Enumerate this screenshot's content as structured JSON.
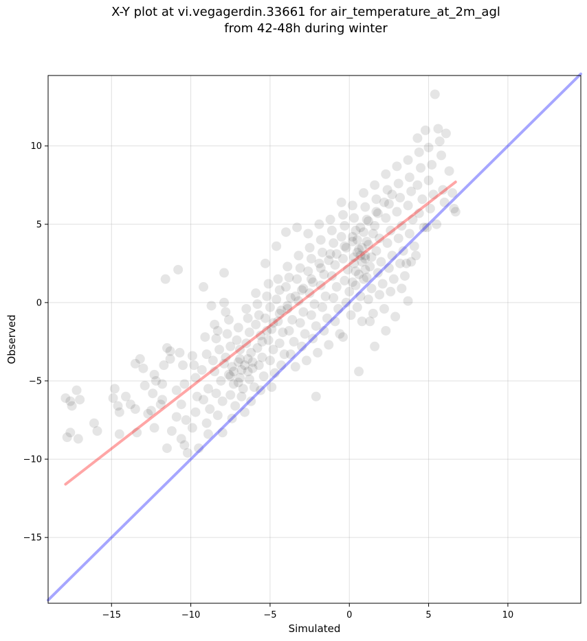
{
  "chart_data": {
    "type": "scatter",
    "title": [
      "X-Y plot at vi.vegagerdin.33661 for air_temperature_at_2m_agl",
      "from 42-48h during winter"
    ],
    "xlabel": "Simulated",
    "ylabel": "Observed",
    "xlim": [
      -19.0,
      14.6
    ],
    "ylim": [
      -19.2,
      14.5
    ],
    "xticks": [
      -15,
      -10,
      -5,
      0,
      5,
      10
    ],
    "xtick_labels": [
      "−15",
      "−10",
      "−5",
      "0",
      "5",
      "10"
    ],
    "yticks": [
      -15,
      -10,
      -5,
      0,
      5,
      10
    ],
    "ytick_labels": [
      "−15",
      "−10",
      "−5",
      "0",
      "5",
      "10"
    ],
    "grid": true,
    "point_color": "#000000",
    "point_alpha": 0.1,
    "regression_line": {
      "color": "#ff0000",
      "alpha": 0.35,
      "x": [
        -17.9,
        6.7
      ],
      "y": [
        -11.6,
        7.7
      ]
    },
    "identity_line": {
      "color": "#0000ff",
      "alpha": 0.35,
      "x": [
        -19.0,
        14.6
      ],
      "y": [
        -19.0,
        14.6
      ]
    },
    "points": [
      [
        -17.9,
        -6.1
      ],
      [
        -17.6,
        -6.3
      ],
      [
        -17.2,
        -5.6
      ],
      [
        -17.0,
        -6.2
      ],
      [
        -17.8,
        -8.6
      ],
      [
        -17.6,
        -8.3
      ],
      [
        -17.1,
        -8.7
      ],
      [
        -17.5,
        -6.6
      ],
      [
        -16.1,
        -7.7
      ],
      [
        -15.9,
        -8.2
      ],
      [
        -14.8,
        -5.5
      ],
      [
        -14.9,
        -6.1
      ],
      [
        -14.6,
        -6.6
      ],
      [
        -14.5,
        -7.0
      ],
      [
        -14.5,
        -8.4
      ],
      [
        -14.1,
        -6.0
      ],
      [
        -13.8,
        -6.5
      ],
      [
        -13.5,
        -6.8
      ],
      [
        -13.4,
        -8.3
      ],
      [
        -13.2,
        -3.6
      ],
      [
        -13.5,
        -3.9
      ],
      [
        -13.0,
        -4.2
      ],
      [
        -12.9,
        -5.3
      ],
      [
        -12.7,
        -7.1
      ],
      [
        -12.5,
        -6.9
      ],
      [
        -12.3,
        -4.6
      ],
      [
        -12.2,
        -5.0
      ],
      [
        -12.4,
        -5.8
      ],
      [
        -12.3,
        -8.0
      ],
      [
        -11.8,
        -5.2
      ],
      [
        -11.8,
        -6.2
      ],
      [
        -11.9,
        -6.5
      ],
      [
        -11.7,
        -4.0
      ],
      [
        -11.6,
        1.5
      ],
      [
        -11.5,
        -2.9
      ],
      [
        -11.3,
        -3.1
      ],
      [
        -11.3,
        -3.6
      ],
      [
        -11.2,
        -8.2
      ],
      [
        -11.5,
        -9.3
      ],
      [
        -10.8,
        2.1
      ],
      [
        -10.7,
        -3.2
      ],
      [
        -10.5,
        -4.0
      ],
      [
        -10.4,
        -5.2
      ],
      [
        -10.9,
        -5.6
      ],
      [
        -10.6,
        -6.5
      ],
      [
        -10.9,
        -7.3
      ],
      [
        -10.3,
        -7.5
      ],
      [
        -10.6,
        -8.7
      ],
      [
        -10.4,
        -9.1
      ],
      [
        -10.2,
        -9.6
      ],
      [
        -9.9,
        -3.4
      ],
      [
        -9.8,
        -4.0
      ],
      [
        -9.7,
        -4.8
      ],
      [
        -9.6,
        -6.0
      ],
      [
        -9.7,
        -7.0
      ],
      [
        -9.9,
        -8.0
      ],
      [
        -9.5,
        -9.3
      ],
      [
        -9.2,
        1.0
      ],
      [
        -9.1,
        -2.2
      ],
      [
        -9.0,
        -3.3
      ],
      [
        -9.3,
        -4.3
      ],
      [
        -8.9,
        -5.5
      ],
      [
        -9.2,
        -6.2
      ],
      [
        -8.8,
        -6.8
      ],
      [
        -9.0,
        -7.7
      ],
      [
        -8.9,
        -8.4
      ],
      [
        -8.7,
        -0.2
      ],
      [
        -8.5,
        -1.4
      ],
      [
        -8.3,
        -1.8
      ],
      [
        -8.4,
        -2.3
      ],
      [
        -8.2,
        -3.0
      ],
      [
        -8.6,
        -3.7
      ],
      [
        -8.5,
        -4.4
      ],
      [
        -8.1,
        -5.0
      ],
      [
        -8.4,
        -5.8
      ],
      [
        -8.0,
        -6.3
      ],
      [
        -8.3,
        -7.2
      ],
      [
        -8.0,
        -8.3
      ],
      [
        -7.9,
        1.9
      ],
      [
        -7.9,
        0.0
      ],
      [
        -7.8,
        -0.6
      ],
      [
        -7.6,
        -1.1
      ],
      [
        -7.7,
        -2.0
      ],
      [
        -7.5,
        -2.8
      ],
      [
        -7.8,
        -3.5
      ],
      [
        -7.4,
        -4.1
      ],
      [
        -7.6,
        -4.6
      ],
      [
        -7.3,
        -5.2
      ],
      [
        -7.5,
        -5.9
      ],
      [
        -7.2,
        -6.6
      ],
      [
        -7.4,
        -7.4
      ],
      [
        -7.0,
        -1.6
      ],
      [
        -7.1,
        -2.4
      ],
      [
        -6.9,
        -3.0
      ],
      [
        -7.0,
        -3.8
      ],
      [
        -6.8,
        -4.3
      ],
      [
        -6.9,
        -4.8
      ],
      [
        -6.7,
        -5.5
      ],
      [
        -6.8,
        -6.0
      ],
      [
        -6.6,
        -7.0
      ],
      [
        -6.5,
        -0.4
      ],
      [
        -6.4,
        -1.0
      ],
      [
        -6.3,
        -1.9
      ],
      [
        -6.5,
        -2.6
      ],
      [
        -6.2,
        -3.2
      ],
      [
        -6.4,
        -3.6
      ],
      [
        -6.1,
        -4.2
      ],
      [
        -6.3,
        -4.9
      ],
      [
        -6.0,
        -5.4
      ],
      [
        -6.2,
        -6.3
      ],
      [
        -5.9,
        0.6
      ],
      [
        -5.8,
        -0.1
      ],
      [
        -5.7,
        -0.8
      ],
      [
        -5.9,
        -1.4
      ],
      [
        -5.6,
        -2.1
      ],
      [
        -5.8,
        -2.9
      ],
      [
        -5.5,
        -3.5
      ],
      [
        -5.7,
        -4.0
      ],
      [
        -5.4,
        -4.7
      ],
      [
        -5.6,
        -5.6
      ],
      [
        -5.3,
        2.5
      ],
      [
        -5.1,
        1.2
      ],
      [
        -5.2,
        0.4
      ],
      [
        -5.0,
        -0.3
      ],
      [
        -5.3,
        -1.0
      ],
      [
        -4.9,
        -1.7
      ],
      [
        -5.1,
        -2.4
      ],
      [
        -4.8,
        -3.0
      ],
      [
        -5.0,
        -3.7
      ],
      [
        -4.7,
        -4.5
      ],
      [
        -4.9,
        -5.4
      ],
      [
        -4.6,
        3.6
      ],
      [
        -4.5,
        1.5
      ],
      [
        -4.4,
        0.8
      ],
      [
        -4.6,
        0.2
      ],
      [
        -4.3,
        -0.5
      ],
      [
        -4.5,
        -1.2
      ],
      [
        -4.2,
        -1.9
      ],
      [
        -4.4,
        -2.6
      ],
      [
        -4.1,
        -3.3
      ],
      [
        -4.3,
        -4.0
      ],
      [
        -4.0,
        4.5
      ],
      [
        -3.9,
        2.3
      ],
      [
        -3.8,
        1.6
      ],
      [
        -4.0,
        1.0
      ],
      [
        -3.7,
        0.3
      ],
      [
        -3.9,
        -0.4
      ],
      [
        -3.6,
        -1.1
      ],
      [
        -3.8,
        -1.8
      ],
      [
        -3.5,
        -2.5
      ],
      [
        -3.7,
        -3.3
      ],
      [
        -3.4,
        -4.1
      ],
      [
        -3.3,
        4.8
      ],
      [
        -3.2,
        3.0
      ],
      [
        -3.1,
        2.2
      ],
      [
        -3.3,
        1.5
      ],
      [
        -3.0,
        0.8
      ],
      [
        -3.2,
        0.1
      ],
      [
        -2.9,
        -0.6
      ],
      [
        -3.1,
        -1.3
      ],
      [
        -2.8,
        -2.0
      ],
      [
        -3.0,
        -2.8
      ],
      [
        -2.7,
        -3.7
      ],
      [
        -2.6,
        4.4
      ],
      [
        -2.5,
        3.5
      ],
      [
        -2.4,
        2.8
      ],
      [
        -2.6,
        2.0
      ],
      [
        -2.3,
        1.3
      ],
      [
        -2.5,
        0.6
      ],
      [
        -2.2,
        -0.1
      ],
      [
        -2.4,
        -0.8
      ],
      [
        -2.1,
        -1.5
      ],
      [
        -2.3,
        -2.3
      ],
      [
        -2.0,
        -3.2
      ],
      [
        -2.1,
        -6.0
      ],
      [
        -1.9,
        5.0
      ],
      [
        -1.8,
        4.0
      ],
      [
        -1.7,
        3.2
      ],
      [
        -1.9,
        2.5
      ],
      [
        -1.6,
        1.8
      ],
      [
        -1.8,
        1.1
      ],
      [
        -1.5,
        0.4
      ],
      [
        -1.7,
        -0.3
      ],
      [
        -1.4,
        -1.0
      ],
      [
        -1.6,
        -1.8
      ],
      [
        -1.3,
        -2.7
      ],
      [
        -1.2,
        5.3
      ],
      [
        -1.1,
        4.6
      ],
      [
        -1.0,
        3.8
      ],
      [
        -1.2,
        3.1
      ],
      [
        -0.9,
        2.4
      ],
      [
        -1.1,
        1.7
      ],
      [
        -0.8,
        1.0
      ],
      [
        -1.0,
        0.3
      ],
      [
        -0.7,
        -0.4
      ],
      [
        -0.9,
        -1.2
      ],
      [
        -0.6,
        -2.0
      ],
      [
        -0.5,
        6.4
      ],
      [
        -0.4,
        5.6
      ],
      [
        -0.3,
        4.9
      ],
      [
        -0.5,
        4.2
      ],
      [
        -0.2,
        3.5
      ],
      [
        -0.4,
        2.8
      ],
      [
        -0.1,
        2.1
      ],
      [
        -0.3,
        1.4
      ],
      [
        0.0,
        0.7
      ],
      [
        -0.2,
        0.0
      ],
      [
        0.1,
        -0.8
      ],
      [
        -0.4,
        -2.2
      ],
      [
        0.6,
        -4.4
      ],
      [
        0.2,
        6.2
      ],
      [
        0.3,
        5.4
      ],
      [
        0.4,
        4.6
      ],
      [
        0.2,
        3.9
      ],
      [
        0.5,
        3.2
      ],
      [
        0.3,
        2.5
      ],
      [
        0.6,
        1.8
      ],
      [
        0.4,
        1.1
      ],
      [
        0.7,
        0.4
      ],
      [
        0.5,
        -0.3
      ],
      [
        0.8,
        -1.2
      ],
      [
        0.9,
        7.0
      ],
      [
        1.0,
        6.1
      ],
      [
        1.1,
        5.3
      ],
      [
        0.9,
        4.5
      ],
      [
        1.2,
        3.7
      ],
      [
        1.0,
        3.0
      ],
      [
        1.3,
        2.3
      ],
      [
        1.1,
        1.6
      ],
      [
        1.4,
        0.9
      ],
      [
        1.2,
        0.2
      ],
      [
        1.5,
        -0.7
      ],
      [
        1.3,
        -1.2
      ],
      [
        1.6,
        -2.8
      ],
      [
        1.6,
        7.5
      ],
      [
        1.7,
        6.6
      ],
      [
        1.8,
        5.7
      ],
      [
        1.6,
        4.9
      ],
      [
        1.9,
        4.1
      ],
      [
        1.7,
        3.3
      ],
      [
        2.0,
        2.6
      ],
      [
        1.8,
        1.9
      ],
      [
        2.1,
        1.2
      ],
      [
        1.9,
        0.5
      ],
      [
        2.2,
        -0.4
      ],
      [
        2.3,
        -1.8
      ],
      [
        2.3,
        8.2
      ],
      [
        2.4,
        7.2
      ],
      [
        2.5,
        6.3
      ],
      [
        2.3,
        5.4
      ],
      [
        2.6,
        4.6
      ],
      [
        2.4,
        3.8
      ],
      [
        2.7,
        3.0
      ],
      [
        2.5,
        2.2
      ],
      [
        2.8,
        1.5
      ],
      [
        2.6,
        0.7
      ],
      [
        2.9,
        -0.9
      ],
      [
        3.0,
        8.7
      ],
      [
        3.1,
        7.6
      ],
      [
        3.2,
        6.7
      ],
      [
        3.0,
        5.8
      ],
      [
        3.3,
        4.9
      ],
      [
        3.1,
        4.1
      ],
      [
        3.4,
        3.3
      ],
      [
        3.2,
        2.5
      ],
      [
        3.5,
        1.7
      ],
      [
        3.3,
        0.9
      ],
      [
        3.7,
        9.1
      ],
      [
        3.8,
        8.0
      ],
      [
        3.9,
        7.1
      ],
      [
        3.7,
        6.2
      ],
      [
        4.0,
        5.3
      ],
      [
        3.8,
        4.4
      ],
      [
        4.1,
        3.6
      ],
      [
        3.9,
        2.6
      ],
      [
        3.7,
        0.1
      ],
      [
        4.3,
        10.5
      ],
      [
        4.4,
        9.6
      ],
      [
        4.5,
        8.6
      ],
      [
        4.3,
        7.5
      ],
      [
        4.6,
        6.6
      ],
      [
        4.4,
        5.7
      ],
      [
        4.7,
        4.8
      ],
      [
        4.8,
        11.0
      ],
      [
        5.0,
        9.9
      ],
      [
        5.2,
        8.8
      ],
      [
        5.0,
        7.8
      ],
      [
        5.3,
        6.9
      ],
      [
        5.1,
        6.0
      ],
      [
        5.4,
        13.3
      ],
      [
        5.6,
        11.1
      ],
      [
        5.7,
        10.3
      ],
      [
        5.8,
        9.4
      ],
      [
        5.9,
        7.2
      ],
      [
        6.0,
        6.4
      ],
      [
        6.1,
        10.8
      ],
      [
        6.3,
        8.4
      ],
      [
        6.5,
        7.0
      ],
      [
        6.6,
        6.0
      ],
      [
        6.7,
        5.8
      ],
      [
        5.5,
        5.0
      ],
      [
        4.9,
        4.8
      ],
      [
        4.2,
        3.0
      ],
      [
        3.6,
        2.5
      ],
      [
        -7.9,
        -3.9
      ],
      [
        -7.3,
        -4.4
      ],
      [
        -6.9,
        -3.6
      ],
      [
        -6.6,
        -4.0
      ],
      [
        -7.5,
        -4.7
      ],
      [
        -7.0,
        -5.1
      ],
      [
        -6.4,
        -4.4
      ],
      [
        -6.1,
        -3.8
      ],
      [
        -5.5,
        -2.5
      ],
      [
        -5.2,
        -1.8
      ],
      [
        -4.8,
        -1.3
      ],
      [
        -4.4,
        -0.7
      ],
      [
        -3.9,
        -0.2
      ],
      [
        -3.4,
        0.4
      ],
      [
        -2.9,
        0.9
      ],
      [
        -2.4,
        1.5
      ],
      [
        -1.8,
        2.2
      ],
      [
        -1.3,
        2.7
      ],
      [
        -0.8,
        3.1
      ],
      [
        -0.3,
        3.6
      ],
      [
        0.2,
        4.2
      ],
      [
        0.7,
        4.8
      ],
      [
        1.2,
        5.2
      ],
      [
        1.7,
        5.8
      ],
      [
        2.2,
        6.4
      ],
      [
        2.7,
        6.9
      ],
      [
        0.4,
        2.0
      ],
      [
        0.8,
        2.6
      ],
      [
        1.0,
        2.1
      ],
      [
        0.6,
        3.4
      ],
      [
        1.1,
        3.9
      ],
      [
        0.2,
        1.3
      ],
      [
        0.9,
        1.5
      ],
      [
        1.4,
        2.9
      ],
      [
        0.5,
        4.0
      ],
      [
        1.5,
        4.4
      ],
      [
        0.3,
        2.9
      ],
      [
        0.7,
        3.0
      ],
      [
        1.0,
        2.8
      ],
      [
        0.8,
        3.5
      ]
    ]
  }
}
